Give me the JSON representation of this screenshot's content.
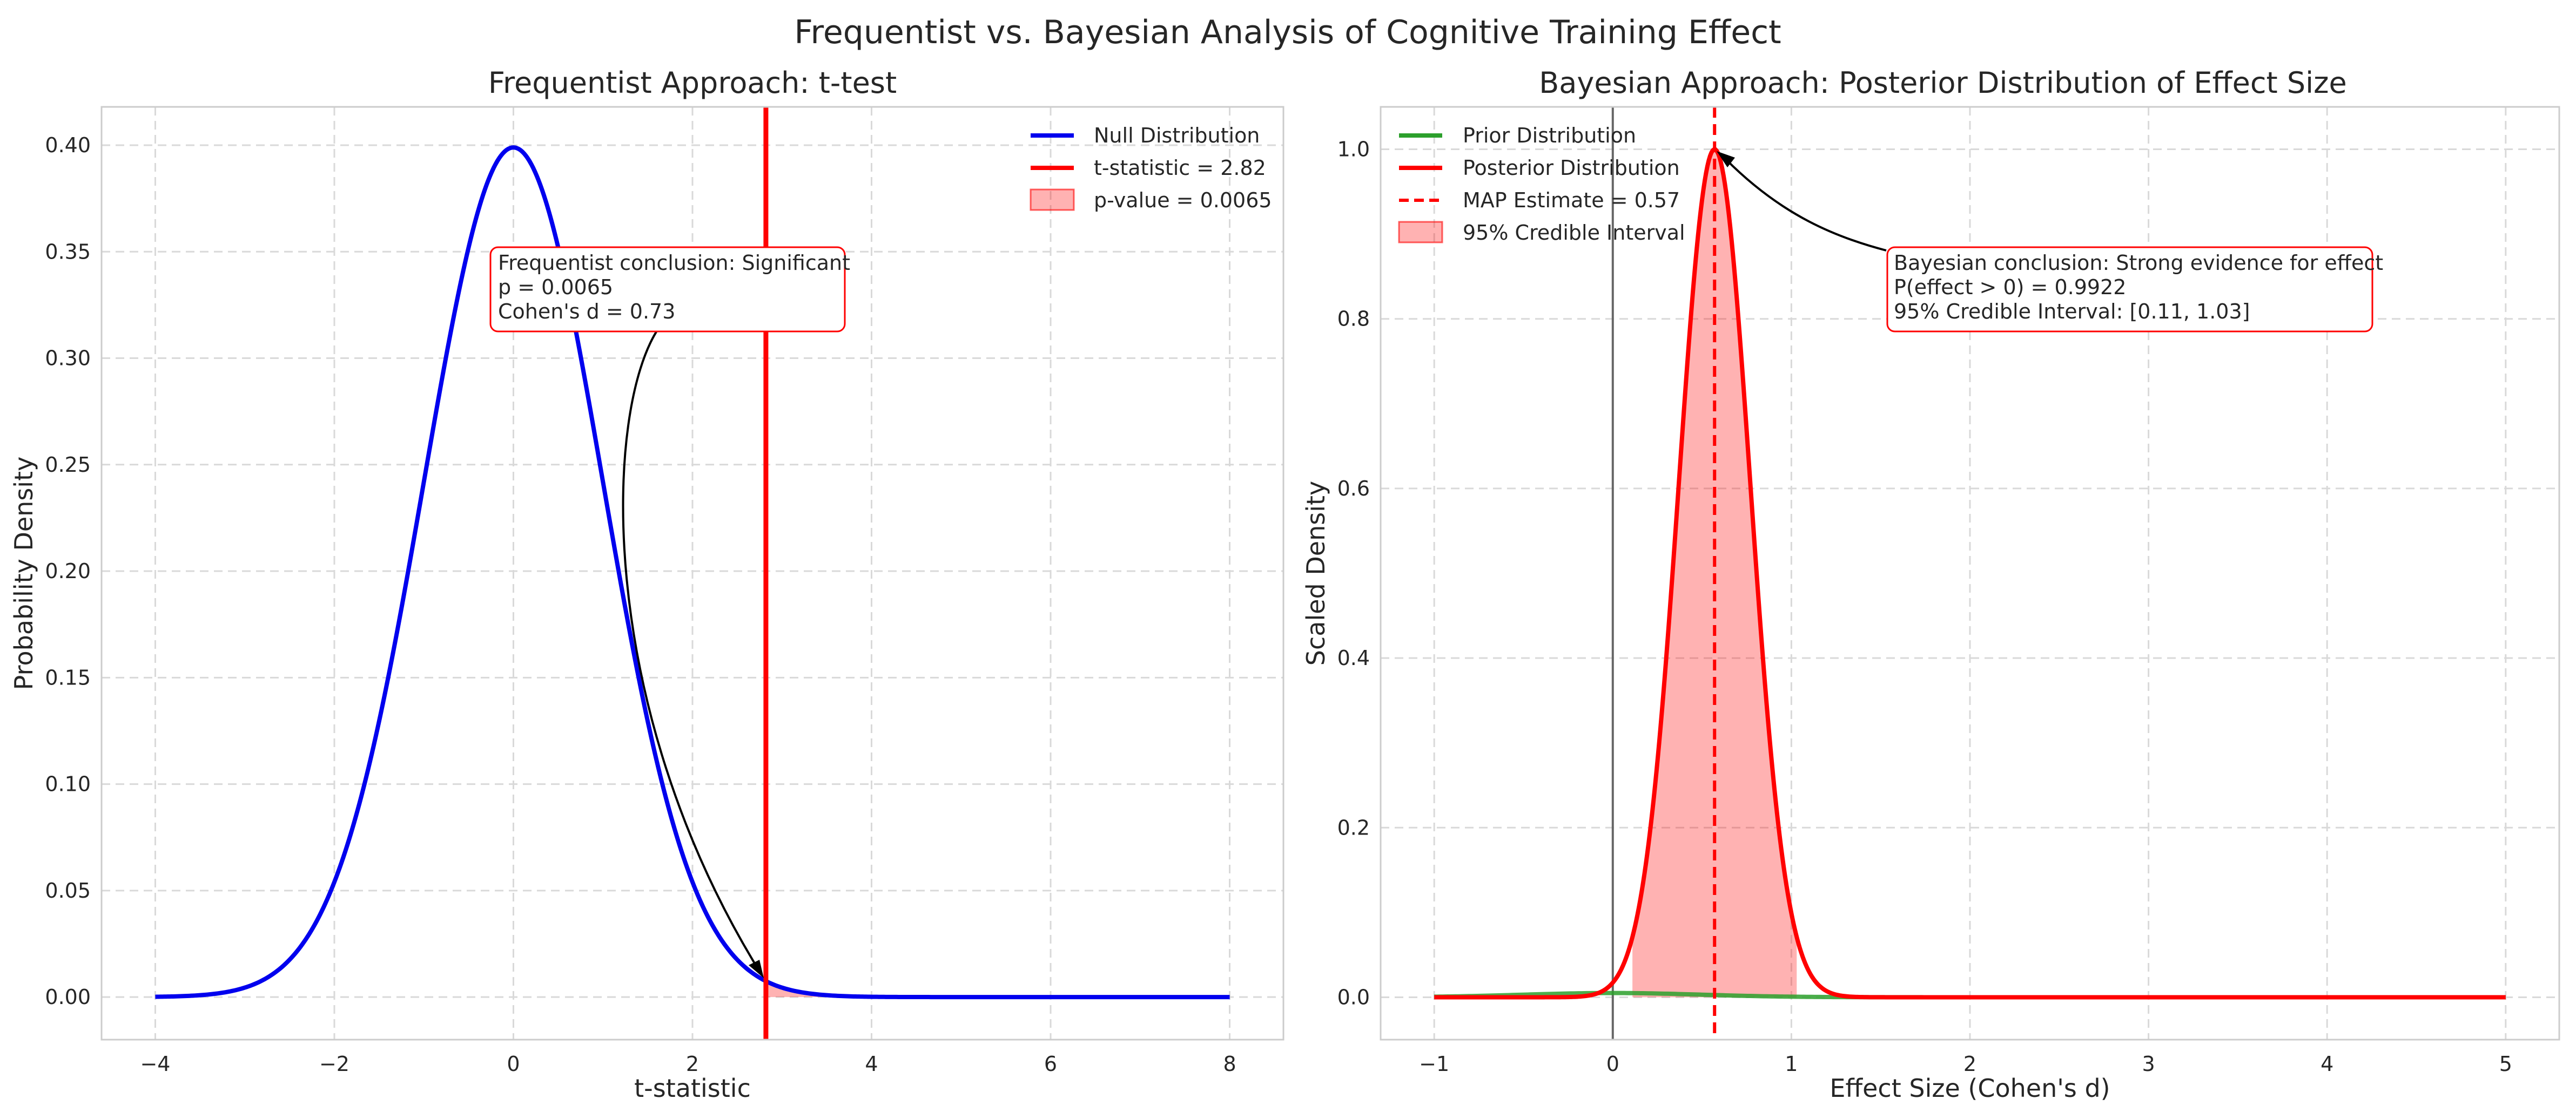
{
  "figure": {
    "suptitle": "Frequentist vs. Bayesian Analysis of Cognitive Training Effect"
  },
  "chart_data": [
    {
      "type": "line",
      "title": "Frequentist Approach: t-test",
      "xlabel": "t-statistic",
      "ylabel": "Probability Density",
      "xlim": [
        -4.6,
        8.6
      ],
      "ylim": [
        -0.02,
        0.418
      ],
      "xticks": [
        -4,
        -2,
        0,
        2,
        4,
        6,
        8
      ],
      "xtick_labels": [
        "−4",
        "−2",
        "0",
        "2",
        "4",
        "6",
        "8"
      ],
      "yticks": [
        0.0,
        0.05,
        0.1,
        0.15,
        0.2,
        0.25,
        0.3,
        0.35,
        0.4
      ],
      "ytick_labels": [
        "0.00",
        "0.05",
        "0.10",
        "0.15",
        "0.20",
        "0.25",
        "0.30",
        "0.35",
        "0.40"
      ],
      "grid": true,
      "legend_position": "top-right",
      "series": [
        {
          "name": "Null Distribution",
          "kind": "curve",
          "distribution": "normal",
          "mean": 0,
          "sd": 1,
          "x_range": [
            -4,
            8
          ],
          "color": "#0000ee"
        },
        {
          "name": "t-statistic = 2.82",
          "kind": "vline",
          "x": 2.82,
          "color": "#ff0000"
        },
        {
          "name": "p-value = 0.0065",
          "kind": "fill",
          "x_range": [
            2.82,
            8
          ],
          "color": "#ff0000",
          "alpha": 0.3
        }
      ],
      "annotation": {
        "lines": [
          "Frequentist conclusion: Significant",
          "p = 0.0065",
          "Cohen's d = 0.73"
        ],
        "arrow_target": {
          "x": 2.82,
          "y": 0.0075
        },
        "position": "upper-middle"
      }
    },
    {
      "type": "line",
      "title": "Bayesian Approach: Posterior Distribution of Effect Size",
      "xlabel": "Effect Size (Cohen's d)",
      "ylabel": "Scaled Density",
      "xlim": [
        -1.3,
        5.3
      ],
      "ylim": [
        -0.05,
        1.05
      ],
      "xticks": [
        -1,
        0,
        1,
        2,
        3,
        4,
        5
      ],
      "xtick_labels": [
        "−1",
        "0",
        "1",
        "2",
        "3",
        "4",
        "5"
      ],
      "yticks": [
        0.0,
        0.2,
        0.4,
        0.6,
        0.8,
        1.0
      ],
      "ytick_labels": [
        "0.0",
        "0.2",
        "0.4",
        "0.6",
        "0.8",
        "1.0"
      ],
      "grid": true,
      "legend_position": "top-left",
      "reference_line": {
        "x": 0,
        "color": "#666666"
      },
      "series": [
        {
          "name": "Prior Distribution",
          "kind": "curve",
          "distribution": "normal",
          "mean": 0,
          "sd": 0.5,
          "scale": 0.005,
          "x_range": [
            -1,
            5
          ],
          "color": "#2ca02c"
        },
        {
          "name": "Posterior Distribution",
          "kind": "curve",
          "distribution": "normal",
          "mean": 0.57,
          "sd": 0.2,
          "scale": 1.0,
          "x_range": [
            -1,
            5
          ],
          "color": "#ff0000"
        },
        {
          "name": "MAP Estimate = 0.57",
          "kind": "vline_dashed",
          "x": 0.57,
          "color": "#ff0000"
        },
        {
          "name": "95% Credible Interval",
          "kind": "fill",
          "x_range": [
            0.11,
            1.03
          ],
          "color": "#ff0000",
          "alpha": 0.3
        }
      ],
      "annotation": {
        "lines": [
          "Bayesian conclusion: Strong evidence for effect",
          "P(effect > 0) = 0.9922",
          "95% Credible Interval: [0.11, 1.03]"
        ],
        "arrow_target": {
          "x": 0.57,
          "y": 1.0
        },
        "position": "upper-right"
      }
    }
  ]
}
